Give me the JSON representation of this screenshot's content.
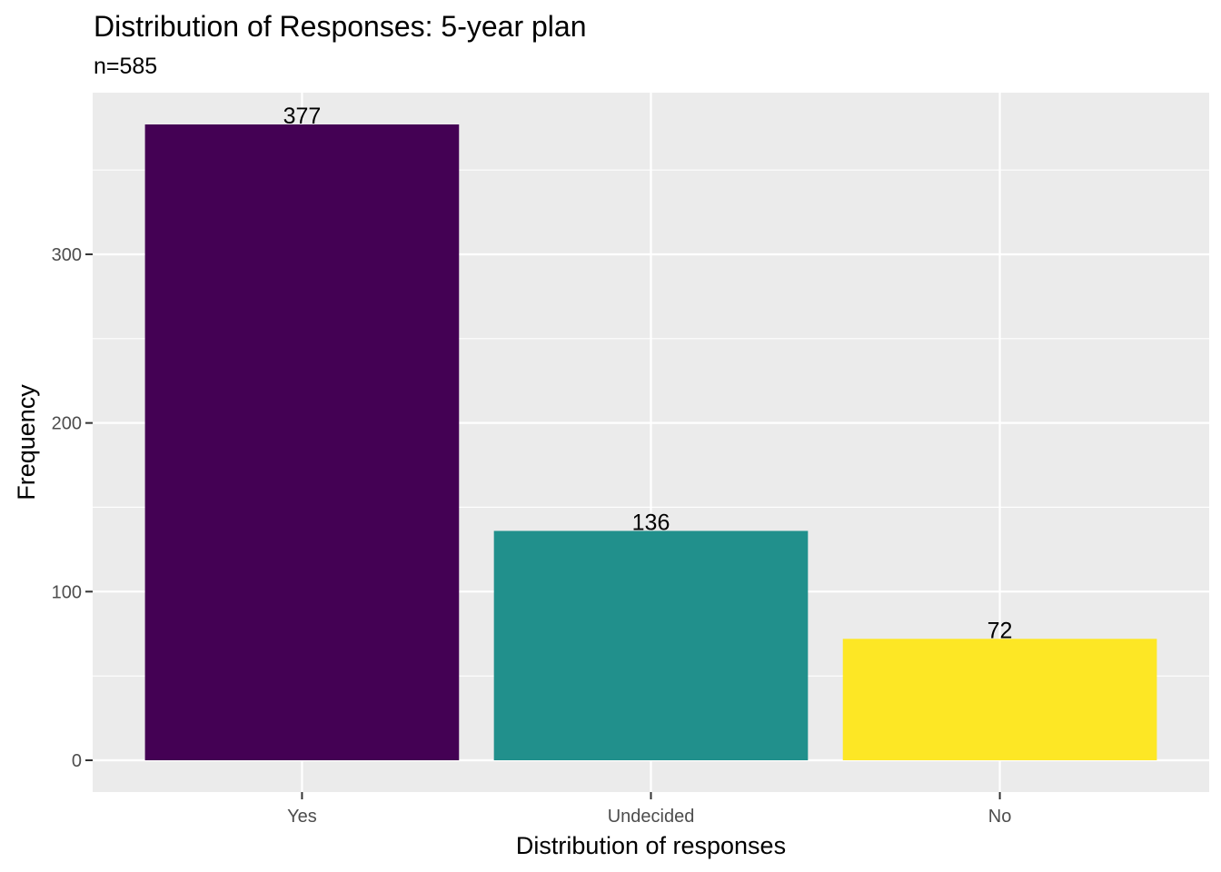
{
  "chart_data": {
    "type": "bar",
    "title": "Distribution of Responses: 5-year plan",
    "subtitle": "n=585",
    "xlabel": "Distribution of responses",
    "ylabel": "Frequency",
    "categories": [
      "Yes",
      "Undecided",
      "No"
    ],
    "values": [
      377,
      136,
      72
    ],
    "data_labels": [
      "377",
      "136",
      "72"
    ],
    "colors": [
      "#440154",
      "#21908C",
      "#FDE725"
    ],
    "ylim": [
      -18.85,
      395.85
    ],
    "yticks": [
      0,
      100,
      200,
      300
    ],
    "ytick_labels": [
      "0",
      "100",
      "200",
      "300"
    ],
    "panel_background": "#EBEBEB",
    "gridline_color": "#FFFFFF",
    "tick_color": "#333333",
    "grid": true,
    "legend": "none"
  }
}
